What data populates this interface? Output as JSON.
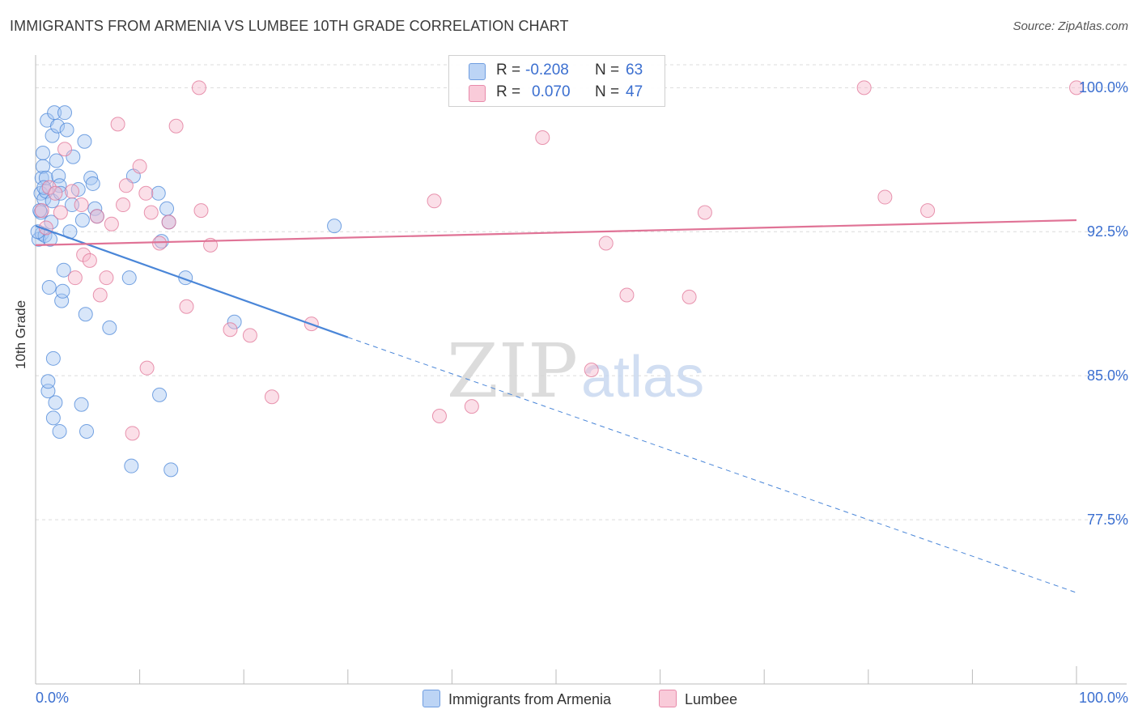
{
  "title": "IMMIGRANTS FROM ARMENIA VS LUMBEE 10TH GRADE CORRELATION CHART",
  "source": "Source: ZipAtlas.com",
  "watermark": {
    "zip": "ZIP",
    "atlas": "atlas"
  },
  "legend": {
    "rows": [
      {
        "r_label": "R =",
        "r_value": "-0.208",
        "n_label": "N =",
        "n_value": "63",
        "color": "#a9c8f2"
      },
      {
        "r_label": "R =",
        "r_value": "0.070",
        "n_label": "N =",
        "n_value": "47",
        "color": "#f7b8cb"
      }
    ]
  },
  "bottom_legend": [
    {
      "label": "Immigrants from Armenia",
      "color": "#a9c8f2"
    },
    {
      "label": "Lumbee",
      "color": "#f7b8cb"
    }
  ],
  "chart_data": {
    "type": "scatter",
    "ylabel": "10th Grade",
    "xlabel": "",
    "xlim": [
      0,
      100
    ],
    "ylim": [
      70.0,
      101.7
    ],
    "x_tick_labels": [
      "0.0%",
      "100.0%"
    ],
    "y_ticks": [
      {
        "value": 100.0,
        "label": "100.0%"
      },
      {
        "value": 92.5,
        "label": "92.5%"
      },
      {
        "value": 85.0,
        "label": "85.0%"
      },
      {
        "value": 77.5,
        "label": "77.5%"
      }
    ],
    "grid": true,
    "series": [
      {
        "name": "Immigrants from Armenia",
        "color": "#4a86d8",
        "fill": "#a9c8f2",
        "trend": {
          "x0": 0,
          "y0": 92.8,
          "x1": 30,
          "y1": 87.0,
          "dash_to_x": 100,
          "dash_to_y": 73.7
        },
        "points": [
          [
            0.3,
            92.1
          ],
          [
            0.5,
            94.5
          ],
          [
            0.5,
            93.5
          ],
          [
            0.6,
            92.4
          ],
          [
            0.6,
            95.3
          ],
          [
            0.7,
            96.6
          ],
          [
            0.7,
            95.9
          ],
          [
            0.8,
            94.2
          ],
          [
            0.9,
            92.3
          ],
          [
            1.0,
            95.3
          ],
          [
            1.0,
            94.6
          ],
          [
            1.1,
            98.3
          ],
          [
            1.2,
            84.2
          ],
          [
            1.2,
            84.7
          ],
          [
            1.3,
            89.6
          ],
          [
            1.4,
            92.1
          ],
          [
            1.5,
            93.0
          ],
          [
            1.6,
            97.5
          ],
          [
            1.6,
            94.1
          ],
          [
            1.7,
            85.9
          ],
          [
            1.7,
            82.8
          ],
          [
            1.8,
            98.7
          ],
          [
            1.9,
            83.6
          ],
          [
            2.0,
            96.2
          ],
          [
            2.1,
            98.0
          ],
          [
            2.2,
            95.4
          ],
          [
            2.3,
            82.1
          ],
          [
            2.3,
            94.9
          ],
          [
            2.4,
            94.5
          ],
          [
            2.5,
            88.9
          ],
          [
            2.6,
            89.4
          ],
          [
            2.7,
            90.5
          ],
          [
            2.8,
            98.7
          ],
          [
            3.0,
            97.8
          ],
          [
            3.3,
            92.5
          ],
          [
            3.5,
            93.9
          ],
          [
            3.6,
            96.4
          ],
          [
            4.1,
            94.7
          ],
          [
            4.4,
            83.5
          ],
          [
            4.5,
            93.1
          ],
          [
            4.7,
            97.2
          ],
          [
            4.8,
            88.2
          ],
          [
            4.9,
            82.1
          ],
          [
            5.3,
            95.3
          ],
          [
            5.5,
            95.0
          ],
          [
            5.7,
            93.7
          ],
          [
            5.9,
            93.3
          ],
          [
            7.1,
            87.5
          ],
          [
            9.0,
            90.1
          ],
          [
            9.2,
            80.3
          ],
          [
            9.4,
            95.4
          ],
          [
            11.8,
            94.5
          ],
          [
            11.9,
            84.0
          ],
          [
            12.1,
            92.0
          ],
          [
            12.6,
            93.7
          ],
          [
            12.8,
            93.0
          ],
          [
            13.0,
            80.1
          ],
          [
            14.4,
            90.1
          ],
          [
            19.1,
            87.8
          ],
          [
            28.7,
            92.8
          ],
          [
            0.2,
            92.5
          ],
          [
            0.4,
            93.6
          ],
          [
            0.8,
            94.8
          ]
        ]
      },
      {
        "name": "Lumbee",
        "color": "#e07396",
        "fill": "#f7b8cb",
        "trend": {
          "x0": 0,
          "y0": 91.8,
          "x1": 100,
          "y1": 93.1
        },
        "points": [
          [
            0.6,
            93.6
          ],
          [
            1.0,
            92.7
          ],
          [
            1.3,
            94.8
          ],
          [
            1.9,
            94.5
          ],
          [
            2.4,
            93.5
          ],
          [
            2.8,
            96.8
          ],
          [
            3.5,
            94.6
          ],
          [
            3.8,
            90.1
          ],
          [
            4.4,
            93.9
          ],
          [
            4.6,
            91.3
          ],
          [
            5.2,
            91.0
          ],
          [
            5.9,
            93.3
          ],
          [
            6.2,
            89.2
          ],
          [
            6.8,
            90.1
          ],
          [
            7.3,
            92.9
          ],
          [
            7.9,
            98.1
          ],
          [
            8.4,
            93.9
          ],
          [
            8.7,
            94.9
          ],
          [
            9.3,
            82.0
          ],
          [
            10.0,
            95.9
          ],
          [
            10.6,
            94.5
          ],
          [
            10.7,
            85.4
          ],
          [
            11.1,
            93.5
          ],
          [
            11.9,
            91.9
          ],
          [
            12.8,
            93.0
          ],
          [
            13.5,
            98.0
          ],
          [
            14.5,
            88.6
          ],
          [
            15.7,
            100.0
          ],
          [
            15.9,
            93.6
          ],
          [
            16.8,
            91.8
          ],
          [
            18.7,
            87.4
          ],
          [
            20.6,
            87.1
          ],
          [
            22.7,
            83.9
          ],
          [
            26.5,
            87.7
          ],
          [
            38.3,
            94.1
          ],
          [
            38.8,
            82.9
          ],
          [
            41.9,
            83.4
          ],
          [
            48.7,
            97.4
          ],
          [
            53.4,
            85.3
          ],
          [
            54.8,
            91.9
          ],
          [
            56.8,
            89.2
          ],
          [
            62.8,
            89.1
          ],
          [
            64.3,
            93.5
          ],
          [
            79.6,
            100.0
          ],
          [
            81.6,
            94.3
          ],
          [
            85.7,
            93.6
          ],
          [
            100.0,
            100.0
          ]
        ]
      }
    ]
  }
}
